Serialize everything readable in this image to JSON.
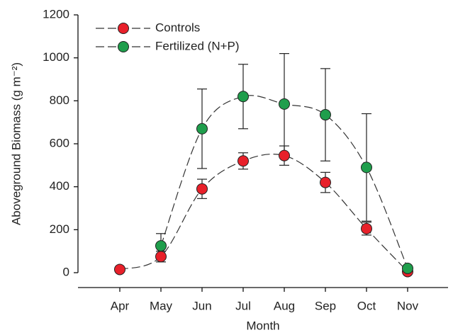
{
  "chart_data": {
    "type": "line",
    "xlabel": "Month",
    "ylabel": "Aboveground Biomass (g m⁻²)",
    "categories": [
      "Apr",
      "May",
      "Jun",
      "Jul",
      "Aug",
      "Sep",
      "Oct",
      "Nov"
    ],
    "series": [
      {
        "name": "Controls",
        "color": "#e8202a",
        "values": [
          15,
          75,
          390,
          520,
          545,
          420,
          205,
          5
        ],
        "errors": [
          null,
          25,
          45,
          38,
          45,
          47,
          30,
          null
        ]
      },
      {
        "name": "Fertilized (N+P)",
        "color": "#1f9e4c",
        "values": [
          null,
          125,
          670,
          820,
          785,
          735,
          490,
          20
        ],
        "errors": [
          null,
          57,
          185,
          150,
          235,
          215,
          250,
          10
        ]
      }
    ],
    "ylim": [
      0,
      1200
    ],
    "yticks": [
      0,
      200,
      400,
      600,
      800,
      1000,
      1200
    ],
    "legend": "upper left"
  }
}
